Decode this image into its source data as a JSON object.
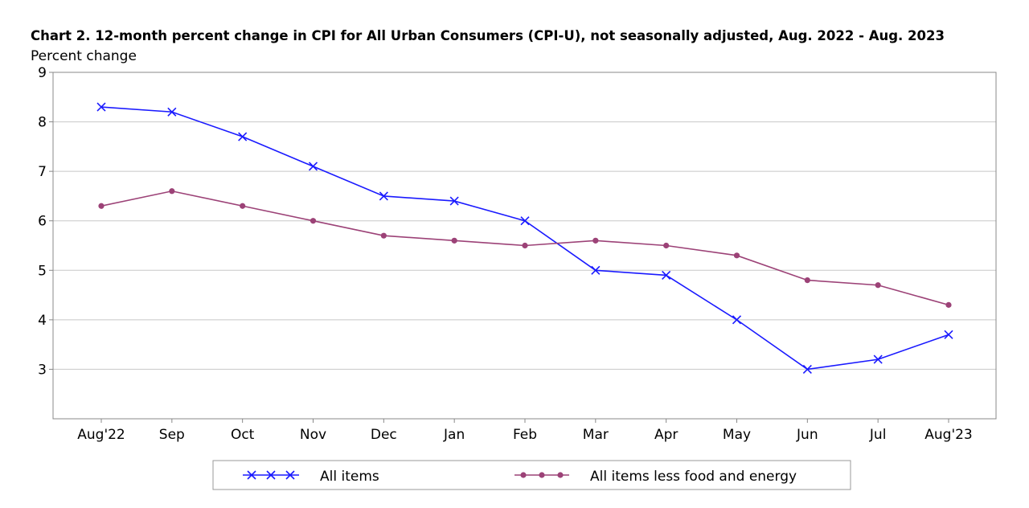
{
  "chart_data": {
    "type": "line",
    "title": "Chart 2. 12-month percent change in CPI for All Urban Consumers (CPI-U), not seasonally adjusted, Aug. 2022 - Aug. 2023",
    "ylabel": "Percent change",
    "xlabel": "",
    "categories": [
      "Aug'22",
      "Sep",
      "Oct",
      "Nov",
      "Dec",
      "Jan",
      "Feb",
      "Mar",
      "Apr",
      "May",
      "Jun",
      "Jul",
      "Aug'23"
    ],
    "ylim": [
      2,
      9
    ],
    "yticks": [
      "3",
      "4",
      "5",
      "6",
      "7",
      "8",
      "9"
    ],
    "grid": true,
    "legend_position": "bottom",
    "series": [
      {
        "name": "All items",
        "color": "#1a1aff",
        "marker": "x",
        "values": [
          8.3,
          8.2,
          7.7,
          7.1,
          6.5,
          6.4,
          6.0,
          5.0,
          4.9,
          4.0,
          3.0,
          3.2,
          3.7
        ]
      },
      {
        "name": "All items less food and energy",
        "color": "#9c4277",
        "marker": "dot",
        "values": [
          6.3,
          6.6,
          6.3,
          6.0,
          5.7,
          5.6,
          5.5,
          5.6,
          5.5,
          5.3,
          4.8,
          4.7,
          4.3
        ]
      }
    ]
  }
}
